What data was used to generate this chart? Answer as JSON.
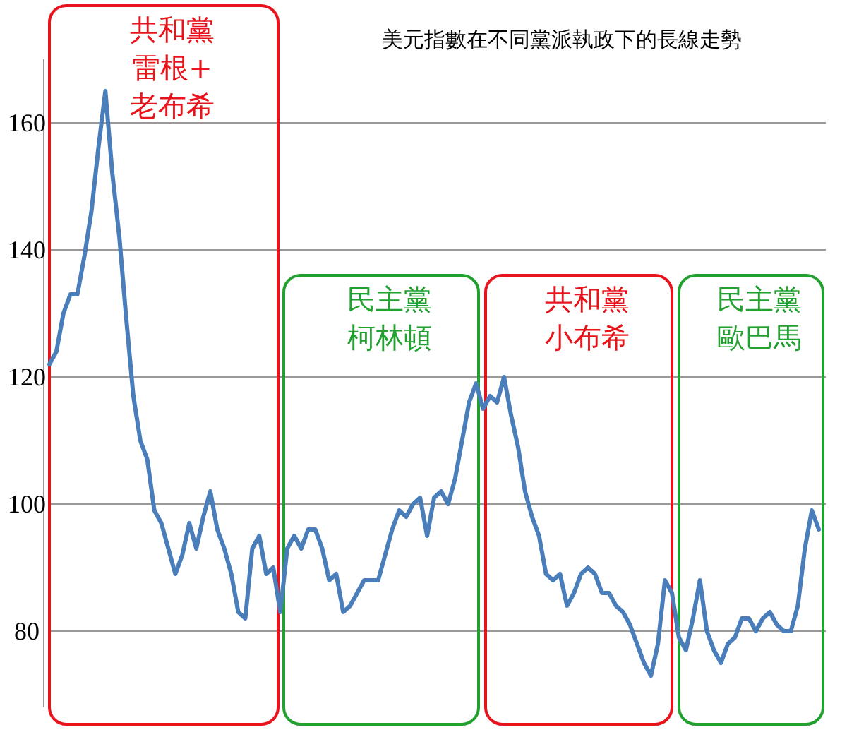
{
  "chart_data": {
    "type": "line",
    "title": "美元指數在不同黨派執政下的長線走勢",
    "categories": [
      null,
      null,
      null,
      null,
      null,
      null,
      null,
      null,
      null,
      null,
      null,
      null,
      null,
      null,
      null,
      null,
      null,
      null,
      null,
      null,
      null,
      null,
      null,
      null,
      null,
      null,
      null,
      null,
      null,
      null,
      null,
      null,
      null,
      null,
      null,
      null,
      null,
      null,
      null,
      null,
      null,
      null,
      null,
      null,
      null,
      null,
      null,
      null,
      null,
      null,
      null,
      null,
      null,
      null,
      null,
      null,
      null,
      null,
      null,
      null,
      null,
      null,
      null,
      null,
      null,
      null,
      null,
      null,
      null,
      null,
      null,
      null,
      null,
      null,
      null,
      null,
      null,
      null,
      null,
      null,
      null,
      null,
      null,
      null,
      null,
      null,
      null,
      null,
      null,
      null,
      null,
      null,
      null,
      null,
      null,
      null,
      null,
      null,
      null,
      null,
      null,
      null,
      null,
      null,
      null,
      null,
      null,
      null,
      null,
      null,
      null
    ],
    "series": [
      {
        "color": "#4a7ebb",
        "values": [
          122,
          124,
          130,
          133,
          133,
          139,
          146,
          156,
          165,
          152,
          142,
          129,
          117,
          110,
          107,
          99,
          97,
          93,
          89,
          92,
          97,
          93,
          98,
          102,
          96,
          93,
          89,
          83,
          82,
          93,
          95,
          89,
          90,
          83,
          93,
          95,
          93,
          96,
          96,
          93,
          88,
          89,
          83,
          84,
          86,
          88,
          88,
          88,
          92,
          96,
          99,
          98,
          100,
          101,
          95,
          101,
          102,
          100,
          104,
          110,
          116,
          119,
          115,
          117,
          116,
          120,
          114,
          109,
          102,
          98,
          95,
          89,
          88,
          89,
          84,
          86,
          89,
          90,
          89,
          86,
          86,
          84,
          83,
          81,
          78,
          75,
          73,
          78,
          88,
          86,
          79,
          77,
          82,
          88,
          80,
          77,
          75,
          78,
          79,
          82,
          82,
          80,
          82,
          83,
          81,
          80,
          80,
          84,
          93,
          99,
          96
        ]
      }
    ],
    "ylim": [
      68,
      170
    ],
    "yticks": [
      80,
      100,
      120,
      140,
      160
    ],
    "tick_labels": "y",
    "grid": "y",
    "annotations": [
      "共和黨雷根+老布希",
      "民主黨柯林頓",
      "共和黨小布希",
      "民主黨歐巴馬"
    ]
  }
}
